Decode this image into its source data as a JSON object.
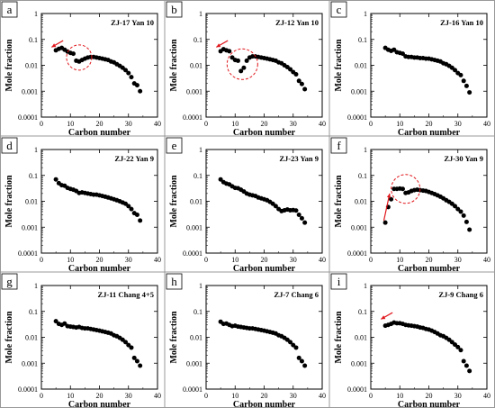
{
  "chart_data": [
    {
      "panel": "a",
      "title": "ZJ-17 Yan 10",
      "type": "scatter",
      "xlabel": "Carbon number",
      "ylabel": "Mole fraction",
      "xlim": [
        0,
        40
      ],
      "ylim": [
        0.0001,
        1
      ],
      "y_scale": "log",
      "x_ticks": [
        0,
        10,
        20,
        30,
        40
      ],
      "y_ticks": [
        1,
        0.1,
        0.01,
        0.001,
        0.0001
      ],
      "y_tick_labels": [
        "1",
        "0.1",
        "0.01",
        "0.001",
        "0.0001"
      ],
      "x": [
        5,
        6,
        7,
        8,
        9,
        10,
        11,
        12,
        13,
        14,
        15,
        16,
        17,
        18,
        19,
        20,
        21,
        22,
        23,
        24,
        25,
        26,
        27,
        28,
        29,
        30,
        31,
        32,
        33,
        34
      ],
      "y": [
        0.038,
        0.043,
        0.047,
        0.04,
        0.034,
        0.03,
        0.028,
        0.015,
        0.014,
        0.016,
        0.018,
        0.02,
        0.021,
        0.021,
        0.02,
        0.019,
        0.018,
        0.017,
        0.016,
        0.014,
        0.013,
        0.011,
        0.0095,
        0.008,
        0.0065,
        0.005,
        0.0035,
        0.002,
        0.0017,
        0.001
      ],
      "annotations": [
        "arrow",
        "dashed-circle"
      ]
    },
    {
      "panel": "b",
      "title": "ZJ-12 Yan 10",
      "type": "scatter",
      "xlabel": "Carbon number",
      "ylabel": "Mole fraction",
      "xlim": [
        0,
        40
      ],
      "ylim": [
        0.0001,
        1
      ],
      "y_scale": "log",
      "x_ticks": [
        0,
        10,
        20,
        30,
        40
      ],
      "y_ticks": [
        1,
        0.1,
        0.01,
        0.001,
        0.0001
      ],
      "y_tick_labels": [
        "1",
        "0.1",
        "0.01",
        "0.001",
        "0.0001"
      ],
      "x": [
        5,
        6,
        7,
        8,
        9,
        10,
        11,
        12,
        13,
        14,
        15,
        16,
        17,
        18,
        19,
        20,
        21,
        22,
        23,
        24,
        25,
        26,
        27,
        28,
        29,
        30,
        31,
        32,
        33,
        34
      ],
      "y": [
        0.035,
        0.042,
        0.038,
        0.035,
        0.02,
        0.016,
        0.015,
        0.006,
        0.008,
        0.015,
        0.02,
        0.022,
        0.022,
        0.021,
        0.02,
        0.019,
        0.018,
        0.017,
        0.016,
        0.015,
        0.013,
        0.012,
        0.01,
        0.0085,
        0.007,
        0.0055,
        0.0045,
        0.0025,
        0.0019,
        0.0012
      ],
      "annotations": [
        "arrow",
        "dashed-circle"
      ]
    },
    {
      "panel": "c",
      "title": "ZJ-16 Yan 10",
      "type": "scatter",
      "xlabel": "Carbon number",
      "ylabel": "Mole fraction",
      "xlim": [
        0,
        40
      ],
      "ylim": [
        0.0001,
        1
      ],
      "y_scale": "log",
      "x_ticks": [
        0,
        10,
        20,
        30,
        40
      ],
      "y_ticks": [
        1,
        0.1,
        0.01,
        0.001,
        0.0001
      ],
      "y_tick_labels": [
        "1",
        "0.1",
        "0.01",
        "0.001",
        "0.0001"
      ],
      "x": [
        5,
        6,
        7,
        8,
        9,
        10,
        11,
        12,
        13,
        14,
        15,
        16,
        17,
        18,
        19,
        20,
        21,
        22,
        23,
        24,
        25,
        26,
        27,
        28,
        29,
        30,
        31,
        32,
        33,
        34
      ],
      "y": [
        0.047,
        0.04,
        0.036,
        0.04,
        0.032,
        0.03,
        0.028,
        0.022,
        0.021,
        0.021,
        0.02,
        0.02,
        0.019,
        0.019,
        0.018,
        0.018,
        0.017,
        0.016,
        0.015,
        0.014,
        0.012,
        0.011,
        0.0095,
        0.008,
        0.0065,
        0.005,
        0.0042,
        0.0025,
        0.0016,
        0.0009
      ],
      "annotations": []
    },
    {
      "panel": "d",
      "title": "ZJ-22 Yan 9",
      "type": "scatter",
      "xlabel": "Carbon number",
      "ylabel": "Mole fraction",
      "xlim": [
        0,
        40
      ],
      "ylim": [
        0.0001,
        1
      ],
      "y_scale": "log",
      "x_ticks": [
        0,
        10,
        20,
        30,
        40
      ],
      "y_ticks": [
        1,
        0.1,
        0.01,
        0.001,
        0.0001
      ],
      "y_tick_labels": [
        "1",
        "0.1",
        "0.01",
        "0.001",
        "0.0001"
      ],
      "x": [
        5,
        6,
        7,
        8,
        9,
        10,
        11,
        12,
        13,
        14,
        15,
        16,
        17,
        18,
        19,
        20,
        21,
        22,
        23,
        24,
        25,
        26,
        27,
        28,
        29,
        30,
        31,
        32,
        33,
        34
      ],
      "y": [
        0.07,
        0.05,
        0.042,
        0.04,
        0.033,
        0.03,
        0.028,
        0.025,
        0.021,
        0.022,
        0.021,
        0.02,
        0.019,
        0.018,
        0.018,
        0.017,
        0.016,
        0.015,
        0.014,
        0.013,
        0.012,
        0.011,
        0.01,
        0.009,
        0.008,
        0.0065,
        0.005,
        0.0035,
        0.003,
        0.0018
      ],
      "annotations": []
    },
    {
      "panel": "e",
      "title": "ZJ-23 Yan 9",
      "type": "scatter",
      "xlabel": "Carbon number",
      "ylabel": "Mole fraction",
      "xlim": [
        0,
        40
      ],
      "ylim": [
        0.0001,
        1
      ],
      "y_scale": "log",
      "x_ticks": [
        0,
        10,
        20,
        30,
        40
      ],
      "y_ticks": [
        1,
        0.1,
        0.01,
        0.001,
        0.0001
      ],
      "y_tick_labels": [
        "1",
        "0.1",
        "0.01",
        "0.001",
        "0.0001"
      ],
      "x": [
        5,
        6,
        7,
        8,
        9,
        10,
        11,
        12,
        13,
        14,
        15,
        16,
        17,
        18,
        19,
        20,
        21,
        22,
        23,
        24,
        25,
        26,
        27,
        28,
        29,
        30,
        31,
        32,
        33,
        34
      ],
      "y": [
        0.07,
        0.055,
        0.048,
        0.045,
        0.038,
        0.033,
        0.032,
        0.028,
        0.024,
        0.02,
        0.018,
        0.017,
        0.016,
        0.014,
        0.013,
        0.012,
        0.011,
        0.0095,
        0.008,
        0.0065,
        0.005,
        0.0042,
        0.0045,
        0.0048,
        0.0045,
        0.0046,
        0.0044,
        0.003,
        0.0022,
        0.0015
      ],
      "annotations": []
    },
    {
      "panel": "f",
      "title": "ZJ-30 Yan 9",
      "type": "scatter",
      "xlabel": "Carbon number",
      "ylabel": "Mole fraction",
      "xlim": [
        0,
        40
      ],
      "ylim": [
        0.0001,
        1
      ],
      "y_scale": "log",
      "x_ticks": [
        0,
        10,
        20,
        30,
        40
      ],
      "y_ticks": [
        1,
        0.1,
        0.01,
        0.001,
        0.0001
      ],
      "y_tick_labels": [
        "1",
        "0.1",
        "0.01",
        "0.001",
        "0.0001"
      ],
      "x": [
        5,
        6,
        7,
        8,
        9,
        10,
        11,
        12,
        13,
        14,
        15,
        16,
        17,
        18,
        19,
        20,
        21,
        22,
        23,
        24,
        25,
        26,
        27,
        28,
        29,
        30,
        31,
        32,
        33,
        34
      ],
      "y": [
        0.0015,
        0.006,
        0.012,
        0.03,
        0.03,
        0.031,
        0.03,
        0.021,
        0.022,
        0.025,
        0.027,
        0.028,
        0.027,
        0.026,
        0.025,
        0.023,
        0.021,
        0.019,
        0.017,
        0.015,
        0.013,
        0.011,
        0.0095,
        0.008,
        0.0065,
        0.005,
        0.004,
        0.0028,
        0.0016,
        0.0008
      ],
      "annotations": [
        "arrow",
        "dashed-circle"
      ]
    },
    {
      "panel": "g",
      "title": "ZJ-11 Chang 4+5",
      "type": "scatter",
      "xlabel": "Carbon number",
      "ylabel": "Mole fraction",
      "xlim": [
        0,
        40
      ],
      "ylim": [
        0.0001,
        1
      ],
      "y_scale": "log",
      "x_ticks": [
        0,
        10,
        20,
        30,
        40
      ],
      "y_ticks": [
        1,
        0.1,
        0.01,
        0.001,
        0.0001
      ],
      "y_tick_labels": [
        "1",
        "0.1",
        "0.01",
        "0.001",
        "0.0001"
      ],
      "x": [
        5,
        6,
        7,
        8,
        9,
        10,
        11,
        12,
        13,
        14,
        15,
        16,
        17,
        18,
        19,
        20,
        21,
        22,
        23,
        24,
        25,
        26,
        27,
        28,
        29,
        30,
        31,
        32,
        33,
        34
      ],
      "y": [
        0.042,
        0.033,
        0.03,
        0.034,
        0.027,
        0.026,
        0.025,
        0.024,
        0.025,
        0.023,
        0.022,
        0.022,
        0.021,
        0.02,
        0.019,
        0.018,
        0.017,
        0.016,
        0.015,
        0.014,
        0.012,
        0.011,
        0.0095,
        0.008,
        0.0065,
        0.005,
        0.004,
        0.0016,
        0.0012,
        0.0008
      ],
      "annotations": []
    },
    {
      "panel": "h",
      "title": "ZJ-7 Chang 6",
      "type": "scatter",
      "xlabel": "Carbon number",
      "ylabel": "Mole fraction",
      "xlim": [
        0,
        40
      ],
      "ylim": [
        0.0001,
        1
      ],
      "y_scale": "log",
      "x_ticks": [
        0,
        10,
        20,
        30,
        40
      ],
      "y_ticks": [
        1,
        0.1,
        0.01,
        0.001,
        0.0001
      ],
      "y_tick_labels": [
        "1",
        "0.1",
        "0.01",
        "0.001",
        "0.0001"
      ],
      "x": [
        5,
        6,
        7,
        8,
        9,
        10,
        11,
        12,
        13,
        14,
        15,
        16,
        17,
        18,
        19,
        20,
        21,
        22,
        23,
        24,
        25,
        26,
        27,
        28,
        29,
        30,
        31,
        32,
        33,
        34
      ],
      "y": [
        0.04,
        0.033,
        0.034,
        0.03,
        0.027,
        0.028,
        0.026,
        0.025,
        0.024,
        0.023,
        0.022,
        0.022,
        0.021,
        0.02,
        0.019,
        0.018,
        0.017,
        0.016,
        0.015,
        0.014,
        0.012,
        0.011,
        0.0095,
        0.008,
        0.0065,
        0.005,
        0.004,
        0.0016,
        0.0012,
        0.0008
      ],
      "annotations": []
    },
    {
      "panel": "i",
      "title": "ZJ-9 Chang 6",
      "type": "scatter",
      "xlabel": "Carbon number",
      "ylabel": "Mole fraction",
      "xlim": [
        0,
        40
      ],
      "ylim": [
        0.0001,
        1
      ],
      "y_scale": "log",
      "x_ticks": [
        0,
        10,
        20,
        30,
        40
      ],
      "y_ticks": [
        1,
        0.1,
        0.01,
        0.001,
        0.0001
      ],
      "y_tick_labels": [
        "1",
        "0.1",
        "0.01",
        "0.001",
        "0.0001"
      ],
      "x": [
        5,
        6,
        7,
        8,
        9,
        10,
        11,
        12,
        13,
        14,
        15,
        16,
        17,
        18,
        19,
        20,
        21,
        22,
        23,
        24,
        25,
        26,
        27,
        28,
        29,
        30,
        31,
        32,
        33,
        34
      ],
      "y": [
        0.028,
        0.03,
        0.033,
        0.037,
        0.035,
        0.035,
        0.033,
        0.03,
        0.029,
        0.028,
        0.027,
        0.026,
        0.024,
        0.023,
        0.021,
        0.02,
        0.018,
        0.016,
        0.014,
        0.012,
        0.011,
        0.0095,
        0.008,
        0.0065,
        0.0052,
        0.0042,
        0.0032,
        0.0012,
        0.0008,
        0.0005
      ],
      "annotations": [
        "arrow"
      ]
    }
  ]
}
